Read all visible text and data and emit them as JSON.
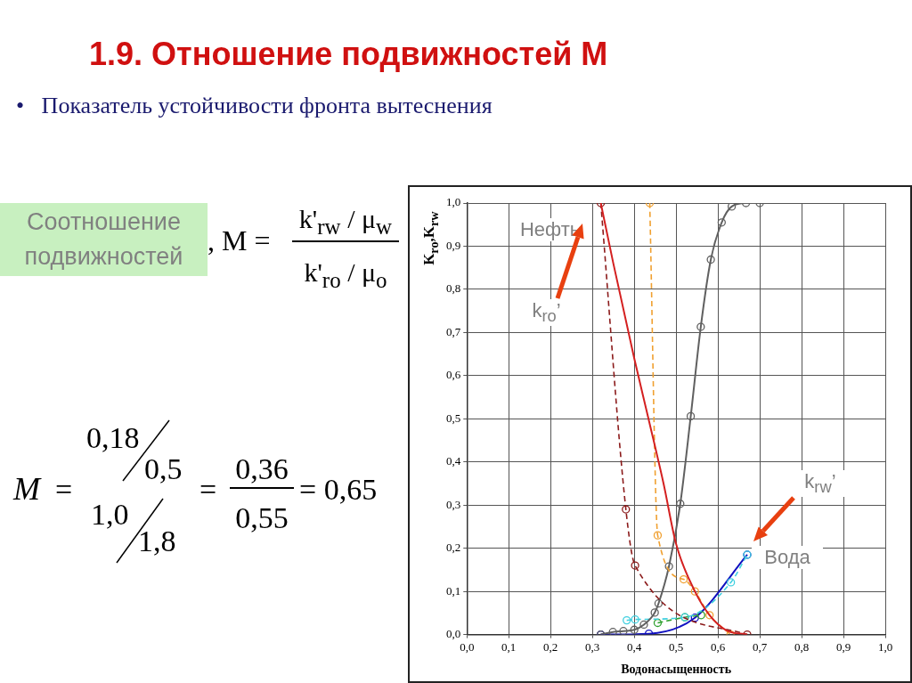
{
  "chart_data": {
    "type": "line",
    "title": "1.9. Отношение подвижностей M",
    "subtitle": "•   Показатель устойчивости фронта вытеснения",
    "xlabel": "Водонасыщенность",
    "ylabel": "K$_{ro}$,K$_{rw}$",
    "xlim": [
      0,
      1
    ],
    "ylim": [
      0,
      1
    ],
    "xticks": [
      {
        "value": 0,
        "label": "0,0"
      },
      {
        "value": 0.1,
        "label": "0,1"
      },
      {
        "value": 0.2,
        "label": "0,2"
      },
      {
        "value": 0.3,
        "label": "0,3"
      },
      {
        "value": 0.4,
        "label": "0,4"
      },
      {
        "value": 0.5,
        "label": "0,5"
      },
      {
        "value": 0.6,
        "label": "0,6"
      },
      {
        "value": 0.7,
        "label": "0,7"
      },
      {
        "value": 0.8,
        "label": "0,8"
      },
      {
        "value": 0.9,
        "label": "0,9"
      },
      {
        "value": 1,
        "label": "1,0"
      }
    ],
    "yticks": [
      {
        "value": 0,
        "label": "0,0"
      },
      {
        "value": 0.1,
        "label": "0,1"
      },
      {
        "value": 0.2,
        "label": "0,2"
      },
      {
        "value": 0.3,
        "label": "0,3"
      },
      {
        "value": 0.4,
        "label": "0,4"
      },
      {
        "value": 0.5,
        "label": "0,5"
      },
      {
        "value": 0.6,
        "label": "0,6"
      },
      {
        "value": 0.7,
        "label": "0,7"
      },
      {
        "value": 0.8,
        "label": "0,8"
      },
      {
        "value": 0.9,
        "label": "0,9"
      },
      {
        "value": 1,
        "label": "1,0"
      }
    ],
    "grid": true,
    "legend": false,
    "series": [
      {
        "color": "#d42020",
        "line_style": "solid",
        "marker": "none",
        "x": [
          0.32,
          0.35,
          0.4,
          0.434,
          0.47,
          0.5,
          0.545,
          0.58,
          0.62,
          0.67
        ],
        "values": [
          1.0,
          0.86,
          0.64,
          0.5,
          0.35,
          0.21,
          0.1,
          0.045,
          0.01,
          0.0
        ]
      },
      {
        "color": "#8b1a1a",
        "line_style": "dashed",
        "marker": "circle",
        "x": [
          0.32,
          0.38,
          0.402,
          0.67
        ],
        "values": [
          1.0,
          0.29,
          0.16,
          0.0
        ]
      },
      {
        "color": "#f0a030",
        "line_style": "dashed",
        "marker": "circle",
        "x": [
          0.437,
          0.456,
          0.518,
          0.545,
          0.58,
          0.63
        ],
        "values": [
          1.0,
          0.23,
          0.128,
          0.1,
          0.045,
          0.0
        ]
      },
      {
        "color": "#606060",
        "line_style": "solid",
        "marker": "circle",
        "x": [
          0.32,
          0.349,
          0.374,
          0.4,
          0.423,
          0.449,
          0.458,
          0.483,
          0.51,
          0.535,
          0.559,
          0.583,
          0.609,
          0.633,
          0.667,
          0.7
        ],
        "values": [
          0.0,
          0.006,
          0.008,
          0.011,
          0.023,
          0.051,
          0.072,
          0.158,
          0.303,
          0.506,
          0.713,
          0.869,
          0.955,
          0.992,
          1.0,
          1.0
        ]
      },
      {
        "color": "#40d0e0",
        "line_style": "dashed",
        "marker": "circle",
        "x": [
          0.382,
          0.402,
          0.521,
          0.631,
          0.67
        ],
        "values": [
          0.033,
          0.035,
          0.04,
          0.121,
          0.185
        ]
      },
      {
        "color": "#30a030",
        "line_style": "dashed",
        "marker": "circle",
        "x": [
          0.456,
          0.521,
          0.56
        ],
        "values": [
          0.027,
          0.04,
          0.045
        ]
      },
      {
        "color": "#1010c0",
        "line_style": "solid",
        "marker": "circle",
        "x": [
          0.32,
          0.435,
          0.545,
          0.67
        ],
        "values": [
          0.0,
          0.002,
          0.039,
          0.185
        ]
      }
    ],
    "annotations": [
      "Соотношение подвижностей",
      ", M =",
      "k'$_{rw}$ / μ$_{w}$",
      "k'$_{ro}$ / μ$_{o}$",
      "M",
      "=",
      "0,18",
      "0,5",
      "1,0",
      "1,8",
      "=",
      "0,36",
      "0,55",
      "= 0,65",
      {
        "text": "Нефть",
        "x": 0.32,
        "y": 0.98
      },
      "k$_{ro}$’",
      {
        "text": "Вода",
        "x": 0.67,
        "y": 0.19
      },
      "k$_{rw}$’"
    ]
  }
}
